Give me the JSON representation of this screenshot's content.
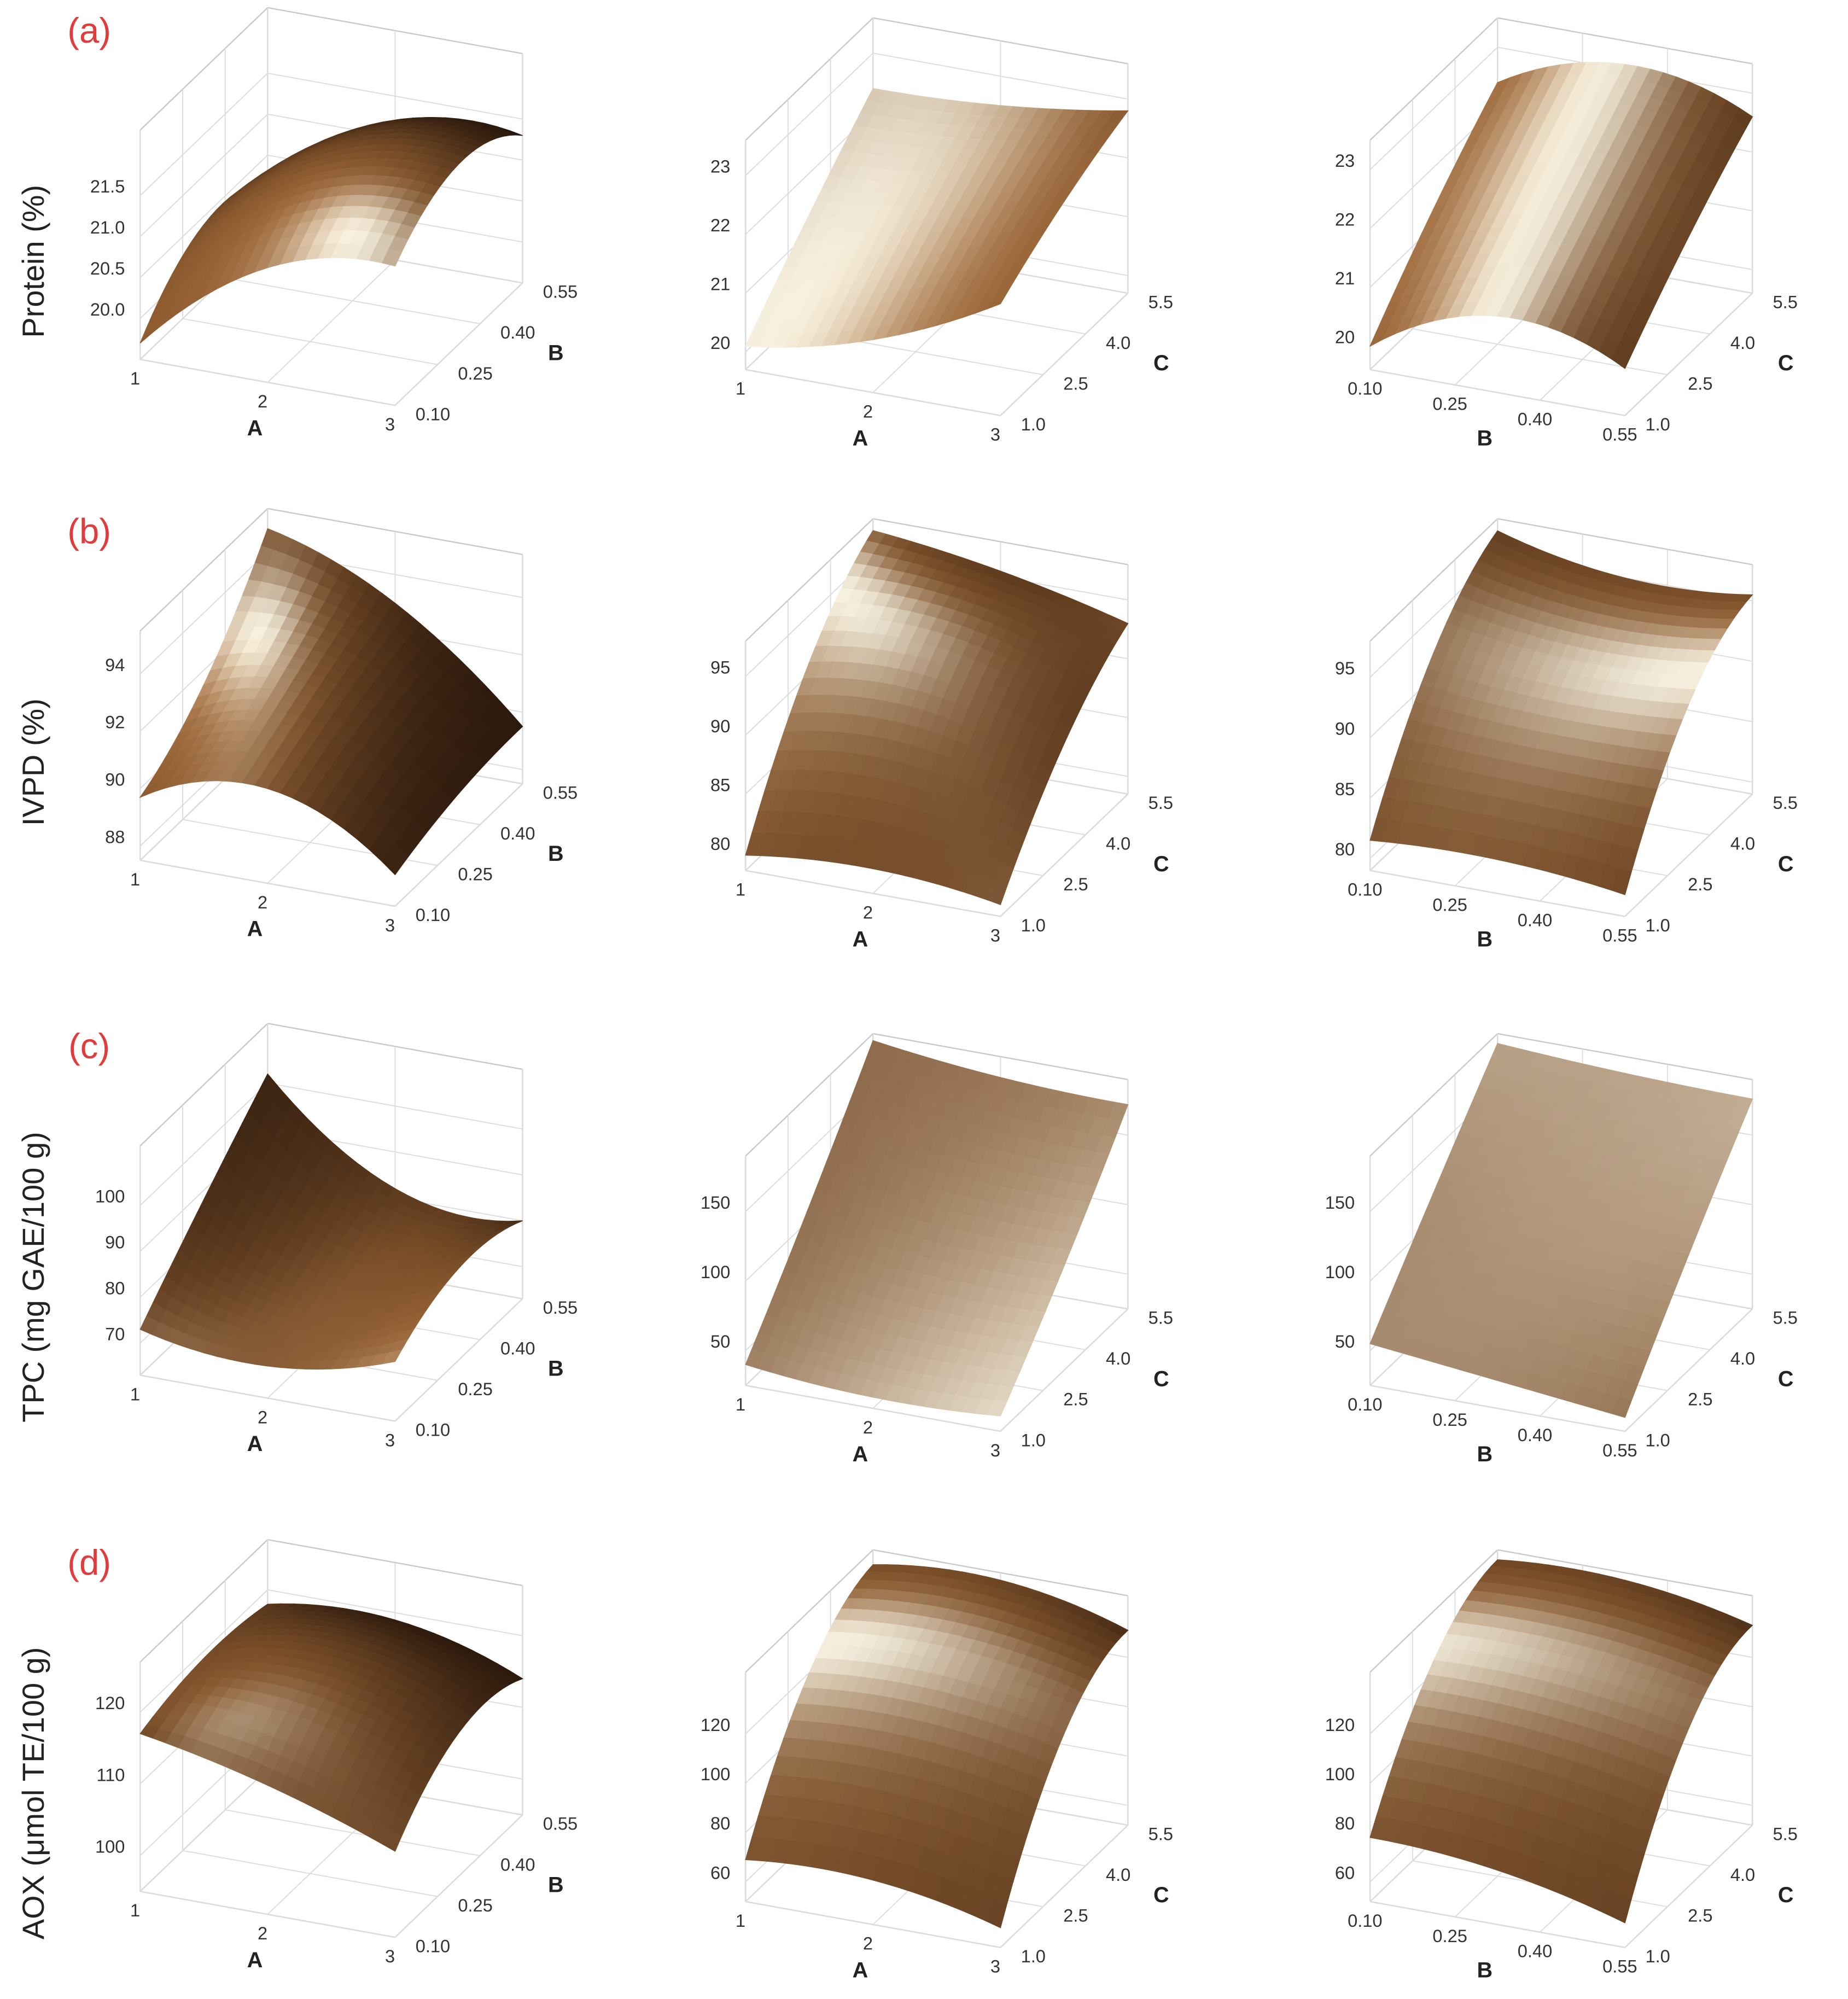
{
  "chart_data": [
    {
      "type": "surface",
      "panel": "(a)",
      "zlabel": "Protein (%)",
      "xlabel": "A",
      "ylabel": "B",
      "grid": true,
      "color": "#9a6434",
      "xlim": [
        1,
        3
      ],
      "xticks": [
        1,
        2,
        3
      ],
      "ylim": [
        0.1,
        0.55
      ],
      "yticks": [
        {
          "value": 0.1,
          "label": "0.10"
        },
        0.25,
        {
          "value": 0.4,
          "label": "0.40"
        },
        0.55
      ],
      "zlim": [
        19.5,
        22.3
      ],
      "zticks": [
        {
          "value": 20,
          "label": "20.0"
        },
        20.5,
        {
          "value": 21,
          "label": "21.0"
        },
        21.5
      ],
      "z": [
        [
          19.7,
          20.9,
          21.2
        ],
        [
          20.4,
          21.5,
          21.7
        ],
        [
          20.2,
          21.2,
          21.3
        ]
      ]
    },
    {
      "type": "surface",
      "xlabel": "A",
      "ylabel": "C",
      "grid": true,
      "color": "#9a6434",
      "xlim": [
        1,
        3
      ],
      "xticks": [
        1,
        2,
        3
      ],
      "ylim": [
        1,
        5.5
      ],
      "yticks": [
        {
          "value": 1,
          "label": "1.0"
        },
        2.5,
        {
          "value": 4,
          "label": "4.0"
        },
        5.5
      ],
      "zlim": [
        19.7,
        23.6
      ],
      "zticks": [
        20,
        21,
        22,
        23
      ],
      "z": [
        [
          20.1,
          20.6,
          21.6
        ],
        [
          21.3,
          21.6,
          22.3
        ],
        [
          22.4,
          22.5,
          22.8
        ]
      ]
    },
    {
      "type": "surface",
      "xlabel": "B",
      "ylabel": "C",
      "grid": true,
      "color": "#9a6434",
      "xlim": [
        0.1,
        0.55
      ],
      "xticks": [
        {
          "value": 0.1,
          "label": "0.10"
        },
        0.25,
        {
          "value": 0.4,
          "label": "0.40"
        },
        0.55
      ],
      "ylim": [
        1,
        5.5
      ],
      "yticks": [
        {
          "value": 1,
          "label": "1.0"
        },
        2.5,
        {
          "value": 4,
          "label": "4.0"
        },
        5.5
      ],
      "zlim": [
        19.6,
        23.5
      ],
      "zticks": [
        20,
        21,
        22,
        23
      ],
      "z": [
        [
          20.0,
          20.9,
          20.4
        ],
        [
          21.3,
          22.0,
          21.6
        ],
        [
          22.4,
          23.1,
          22.6
        ]
      ]
    },
    {
      "type": "surface",
      "panel": "(b)",
      "zlabel": "IVPD (%)",
      "xlabel": "A",
      "ylabel": "B",
      "grid": true,
      "color": "#9a6434",
      "xlim": [
        1,
        3
      ],
      "xticks": [
        1,
        2,
        3
      ],
      "ylim": [
        0.1,
        0.55
      ],
      "yticks": [
        {
          "value": 0.1,
          "label": "0.10"
        },
        0.25,
        {
          "value": 0.4,
          "label": "0.40"
        },
        0.55
      ],
      "zlim": [
        87.5,
        95.5
      ],
      "zticks": [
        88,
        90,
        92,
        94
      ],
      "z": [
        [
          89.7,
          90.8,
          88.6
        ],
        [
          91.5,
          92.0,
          89.3
        ],
        [
          94.8,
          93.0,
          89.5
        ]
      ]
    },
    {
      "type": "surface",
      "xlabel": "A",
      "ylabel": "C",
      "grid": true,
      "color": "#9a6434",
      "xlim": [
        1,
        3
      ],
      "xticks": [
        1,
        2,
        3
      ],
      "ylim": [
        1,
        5.5
      ],
      "yticks": [
        {
          "value": 1,
          "label": "1.0"
        },
        2.5,
        {
          "value": 4,
          "label": "4.0"
        },
        5.5
      ],
      "zlim": [
        78.5,
        98
      ],
      "zticks": [
        80,
        85,
        90,
        95
      ],
      "z": [
        [
          79.8,
          80.6,
          79.5
        ],
        [
          91,
          91.5,
          88
        ],
        [
          97,
          95.5,
          93
        ]
      ]
    },
    {
      "type": "surface",
      "xlabel": "B",
      "ylabel": "C",
      "grid": true,
      "color": "#9a6434",
      "xlim": [
        0.1,
        0.55
      ],
      "xticks": [
        {
          "value": 0.1,
          "label": "0.10"
        },
        0.25,
        {
          "value": 0.4,
          "label": "0.40"
        },
        0.55
      ],
      "ylim": [
        1,
        5.5
      ],
      "yticks": [
        {
          "value": 1,
          "label": "1.0"
        },
        2.5,
        {
          "value": 4,
          "label": "4.0"
        },
        5.5
      ],
      "zlim": [
        79,
        98
      ],
      "zticks": [
        80,
        85,
        90,
        95
      ],
      "z": [
        [
          81.5,
          81.8,
          80.8
        ],
        [
          92,
          91,
          91.5
        ],
        [
          97,
          95,
          95.5
        ]
      ]
    },
    {
      "type": "surface",
      "panel": "(c)",
      "zlabel": "TPC (mg GAE/100 g)",
      "xlabel": "A",
      "ylabel": "B",
      "grid": true,
      "color": "#9a6434",
      "xlim": [
        1,
        3
      ],
      "xticks": [
        1,
        2,
        3
      ],
      "ylim": [
        0.1,
        0.55
      ],
      "yticks": [
        {
          "value": 0.1,
          "label": "0.10"
        },
        0.25,
        {
          "value": 0.4,
          "label": "0.40"
        },
        0.55
      ],
      "zlim": [
        63,
        113
      ],
      "zticks": [
        70,
        80,
        90,
        100
      ],
      "z": [
        [
          73,
          70,
          76
        ],
        [
          88,
          76,
          83
        ],
        [
          102,
          82,
          80
        ]
      ]
    },
    {
      "type": "surface",
      "xlabel": "A",
      "ylabel": "C",
      "grid": true,
      "color": "#9a6434",
      "xlim": [
        1,
        3
      ],
      "xticks": [
        1,
        2,
        3
      ],
      "ylim": [
        1,
        5.5
      ],
      "yticks": [
        {
          "value": 1,
          "label": "1.0"
        },
        2.5,
        {
          "value": 4,
          "label": "4.0"
        },
        5.5
      ],
      "zlim": [
        25,
        190
      ],
      "zticks": [
        50,
        100,
        150
      ],
      "z": [
        [
          40,
          33,
          36
        ],
        [
          110,
          100,
          100
        ],
        [
          185,
          175,
          172
        ]
      ]
    },
    {
      "type": "surface",
      "xlabel": "B",
      "ylabel": "C",
      "grid": true,
      "color": "#9a6434",
      "xlim": [
        0.1,
        0.55
      ],
      "xticks": [
        {
          "value": 0.1,
          "label": "0.10"
        },
        0.25,
        {
          "value": 0.4,
          "label": "0.40"
        },
        0.55
      ],
      "ylim": [
        1,
        5.5
      ],
      "yticks": [
        {
          "value": 1,
          "label": "1.0"
        },
        2.5,
        {
          "value": 4,
          "label": "4.0"
        },
        5.5
      ],
      "zlim": [
        25,
        190
      ],
      "zticks": [
        50,
        100,
        150
      ],
      "z": [
        [
          55,
          45,
          35
        ],
        [
          120,
          112,
          108
        ],
        [
          183,
          178,
          176
        ]
      ]
    },
    {
      "type": "surface",
      "panel": "(d)",
      "zlabel": "AOX (μmol TE/100 g)",
      "xlabel": "A",
      "ylabel": "B",
      "grid": true,
      "color": "#9a6434",
      "xlim": [
        1,
        3
      ],
      "xticks": [
        1,
        2,
        3
      ],
      "ylim": [
        0.1,
        0.55
      ],
      "yticks": [
        {
          "value": 0.1,
          "label": "0.10"
        },
        0.25,
        {
          "value": 0.4,
          "label": "0.40"
        },
        0.55
      ],
      "zlim": [
        95,
        127
      ],
      "zticks": [
        100,
        110,
        120
      ],
      "z": [
        [
          117,
          113,
          107
        ],
        [
          119,
          121,
          115
        ],
        [
          118,
          119,
          114
        ]
      ]
    },
    {
      "type": "surface",
      "xlabel": "A",
      "ylabel": "C",
      "grid": true,
      "color": "#9a6434",
      "xlim": [
        1,
        3
      ],
      "xticks": [
        1,
        2,
        3
      ],
      "ylim": [
        1,
        5.5
      ],
      "yticks": [
        {
          "value": 1,
          "label": "1.0"
        },
        2.5,
        {
          "value": 4,
          "label": "4.0"
        },
        5.5
      ],
      "zlim": [
        52,
        145
      ],
      "zticks": [
        60,
        80,
        100,
        120
      ],
      "z": [
        [
          69,
          70,
          60
        ],
        [
          120,
          122,
          114
        ],
        [
          139,
          142,
          131
        ]
      ]
    },
    {
      "type": "surface",
      "xlabel": "B",
      "ylabel": "C",
      "grid": true,
      "color": "#9a6434",
      "xlim": [
        0.1,
        0.55
      ],
      "xticks": [
        {
          "value": 0.1,
          "label": "0.10"
        },
        0.25,
        {
          "value": 0.4,
          "label": "0.40"
        },
        0.55
      ],
      "ylim": [
        1,
        5.5
      ],
      "yticks": [
        {
          "value": 1,
          "label": "1.0"
        },
        2.5,
        {
          "value": 4,
          "label": "4.0"
        },
        5.5
      ],
      "zlim": [
        52,
        145
      ],
      "zticks": [
        60,
        80,
        100,
        120
      ],
      "z": [
        [
          78,
          74,
          62
        ],
        [
          125,
          124,
          116
        ],
        [
          141,
          142,
          133
        ]
      ]
    }
  ]
}
